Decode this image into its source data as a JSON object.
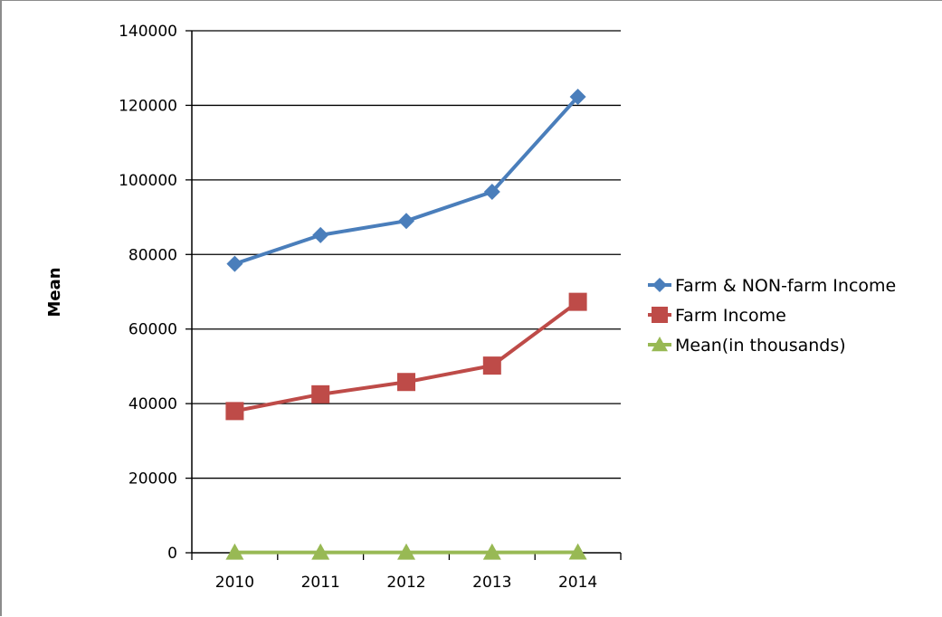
{
  "chart_data": {
    "type": "line",
    "title": "",
    "xlabel": "",
    "ylabel": "Mean",
    "ylim": [
      0,
      140000
    ],
    "yticks": [
      "0",
      "20000",
      "40000",
      "60000",
      "80000",
      "100000",
      "120000",
      "140000"
    ],
    "categories": [
      "2010",
      "2011",
      "2012",
      "2013",
      "2014"
    ],
    "grid": true,
    "legend_position": "right",
    "series": [
      {
        "name": "Farm & NON-farm Income",
        "values": [
          77500,
          85200,
          89000,
          96800,
          122300
        ],
        "color": "#4a7ebb",
        "marker": "diamond"
      },
      {
        "name": "Farm Income",
        "values": [
          38000,
          42500,
          45800,
          50200,
          67300
        ],
        "color": "#be4b48",
        "marker": "square"
      },
      {
        "name": "Mean(in thousands)",
        "values": [
          77.5,
          85.2,
          89.0,
          96.8,
          122.3
        ],
        "color": "#98b954",
        "marker": "triangle"
      }
    ]
  }
}
